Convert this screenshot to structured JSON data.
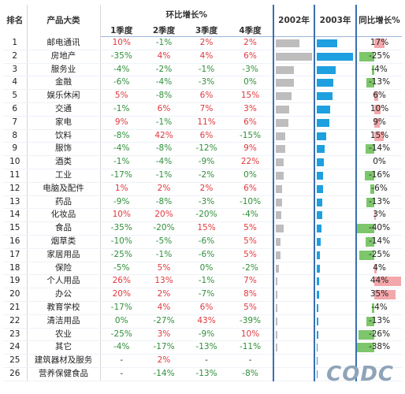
{
  "headers": {
    "rank": "排名",
    "category": "产品大类",
    "mom_group": "环比增长%",
    "quarters": [
      "1季度",
      "2季度",
      "3季度",
      "4季度"
    ],
    "y2002": "2002年",
    "y2003": "2003年",
    "yoy": "同比增长%"
  },
  "rows": [
    {
      "rank": "1",
      "category": "邮电通讯",
      "q": [
        "10%",
        "-1%",
        "2%",
        "2%"
      ],
      "yoy": "17%",
      "yoy_value": 17,
      "bar2002": 0.62,
      "bar2003": 0.55
    },
    {
      "rank": "2",
      "category": "房地产",
      "q": [
        "-35%",
        "4%",
        "4%",
        "6%"
      ],
      "yoy": "-25%",
      "yoy_value": -25,
      "bar2002": 0.96,
      "bar2003": 0.98
    },
    {
      "rank": "3",
      "category": "服务业",
      "q": [
        "-4%",
        "-2%",
        "-1%",
        "-3%"
      ],
      "yoy": "-4%",
      "yoy_value": -4,
      "bar2002": 0.48,
      "bar2003": 0.5
    },
    {
      "rank": "4",
      "category": "金融",
      "q": [
        "-6%",
        "-4%",
        "-3%",
        "0%"
      ],
      "yoy": "-13%",
      "yoy_value": -13,
      "bar2002": 0.47,
      "bar2003": 0.45
    },
    {
      "rank": "5",
      "category": "娱乐休闲",
      "q": [
        "5%",
        "-8%",
        "6%",
        "15%"
      ],
      "yoy": "6%",
      "yoy_value": 6,
      "bar2002": 0.42,
      "bar2003": 0.42
    },
    {
      "rank": "6",
      "category": "交通",
      "q": [
        "-1%",
        "6%",
        "7%",
        "3%"
      ],
      "yoy": "10%",
      "yoy_value": 10,
      "bar2002": 0.36,
      "bar2003": 0.37
    },
    {
      "rank": "7",
      "category": "家电",
      "q": [
        "9%",
        "-1%",
        "11%",
        "6%"
      ],
      "yoy": "9%",
      "yoy_value": 9,
      "bar2002": 0.34,
      "bar2003": 0.34
    },
    {
      "rank": "8",
      "category": "饮料",
      "q": [
        "-8%",
        "42%",
        "6%",
        "-15%"
      ],
      "yoy": "15%",
      "yoy_value": 15,
      "bar2002": 0.24,
      "bar2003": 0.26
    },
    {
      "rank": "9",
      "category": "服饰",
      "q": [
        "-4%",
        "-8%",
        "-12%",
        "9%"
      ],
      "yoy": "-14%",
      "yoy_value": -14,
      "bar2002": 0.26,
      "bar2003": 0.21
    },
    {
      "rank": "10",
      "category": "酒类",
      "q": [
        "-1%",
        "-4%",
        "-9%",
        "22%"
      ],
      "yoy": "0%",
      "yoy_value": 0,
      "bar2002": 0.2,
      "bar2003": 0.19
    },
    {
      "rank": "11",
      "category": "工业",
      "q": [
        "-17%",
        "-1%",
        "-2%",
        "0%"
      ],
      "yoy": "-16%",
      "yoy_value": -16,
      "bar2002": 0.2,
      "bar2003": 0.17
    },
    {
      "rank": "12",
      "category": "电脑及配件",
      "q": [
        "1%",
        "2%",
        "2%",
        "6%"
      ],
      "yoy": "-6%",
      "yoy_value": -6,
      "bar2002": 0.17,
      "bar2003": 0.16
    },
    {
      "rank": "13",
      "category": "药品",
      "q": [
        "-9%",
        "-8%",
        "-3%",
        "-10%"
      ],
      "yoy": "-13%",
      "yoy_value": -13,
      "bar2002": 0.17,
      "bar2003": 0.15
    },
    {
      "rank": "14",
      "category": "化妆品",
      "q": [
        "10%",
        "20%",
        "-20%",
        "-4%"
      ],
      "yoy": "3%",
      "yoy_value": 3,
      "bar2002": 0.14,
      "bar2003": 0.14
    },
    {
      "rank": "15",
      "category": "食品",
      "q": [
        "-35%",
        "-20%",
        "15%",
        "5%"
      ],
      "yoy": "-40%",
      "yoy_value": -40,
      "bar2002": 0.2,
      "bar2003": 0.12
    },
    {
      "rank": "16",
      "category": "烟草类",
      "q": [
        "-10%",
        "-5%",
        "-6%",
        "5%"
      ],
      "yoy": "-14%",
      "yoy_value": -14,
      "bar2002": 0.12,
      "bar2003": 0.1
    },
    {
      "rank": "17",
      "category": "家居用品",
      "q": [
        "-25%",
        "-1%",
        "-6%",
        "5%"
      ],
      "yoy": "-25%",
      "yoy_value": -25,
      "bar2002": 0.12,
      "bar2003": 0.09
    },
    {
      "rank": "18",
      "category": "保险",
      "q": [
        "-5%",
        "5%",
        "0%",
        "-2%"
      ],
      "yoy": "4%",
      "yoy_value": 4,
      "bar2002": 0.08,
      "bar2003": 0.08
    },
    {
      "rank": "19",
      "category": "个人用品",
      "q": [
        "26%",
        "13%",
        "-1%",
        "7%"
      ],
      "yoy": "44%",
      "yoy_value": 44,
      "bar2002": 0.05,
      "bar2003": 0.07
    },
    {
      "rank": "20",
      "category": "办公",
      "q": [
        "20%",
        "2%",
        "-7%",
        "8%"
      ],
      "yoy": "35%",
      "yoy_value": 35,
      "bar2002": 0.04,
      "bar2003": 0.06
    },
    {
      "rank": "21",
      "category": "教育学校",
      "q": [
        "-17%",
        "4%",
        "6%",
        "5%"
      ],
      "yoy": "-4%",
      "yoy_value": -4,
      "bar2002": 0.05,
      "bar2003": 0.05
    },
    {
      "rank": "22",
      "category": "清洁用品",
      "q": [
        "0%",
        "-27%",
        "43%",
        "-39%"
      ],
      "yoy": "-13%",
      "yoy_value": -13,
      "bar2002": 0.05,
      "bar2003": 0.04
    },
    {
      "rank": "23",
      "category": "农业",
      "q": [
        "-25%",
        "3%",
        "-9%",
        "10%"
      ],
      "yoy": "-26%",
      "yoy_value": -26,
      "bar2002": 0.05,
      "bar2003": 0.04
    },
    {
      "rank": "24",
      "category": "其它",
      "q": [
        "-4%",
        "-17%",
        "-13%",
        "-11%"
      ],
      "yoy": "-38%",
      "yoy_value": -38,
      "bar2002": 0.05,
      "bar2003": 0.03
    },
    {
      "rank": "25",
      "category": "建筑器材及服务",
      "q": [
        "-",
        "2%",
        "-",
        "-"
      ],
      "yoy": "",
      "yoy_value": 0,
      "bar2002": 0,
      "bar2003": 0.02
    },
    {
      "rank": "26",
      "category": "营养保健食品",
      "q": [
        "-",
        "-14%",
        "-13%",
        "-8%"
      ],
      "yoy": "",
      "yoy_value": 0,
      "bar2002": 0,
      "bar2003": 0.02
    }
  ],
  "watermark": "CODC",
  "colors": {
    "positive": "#e0393e",
    "negative": "#2f8f3a",
    "bar2002": "#bdbdbd",
    "bar2003": "#1e9fe0",
    "yoy_pos": "#f4a7ab",
    "yoy_neg": "#7dc66b"
  }
}
